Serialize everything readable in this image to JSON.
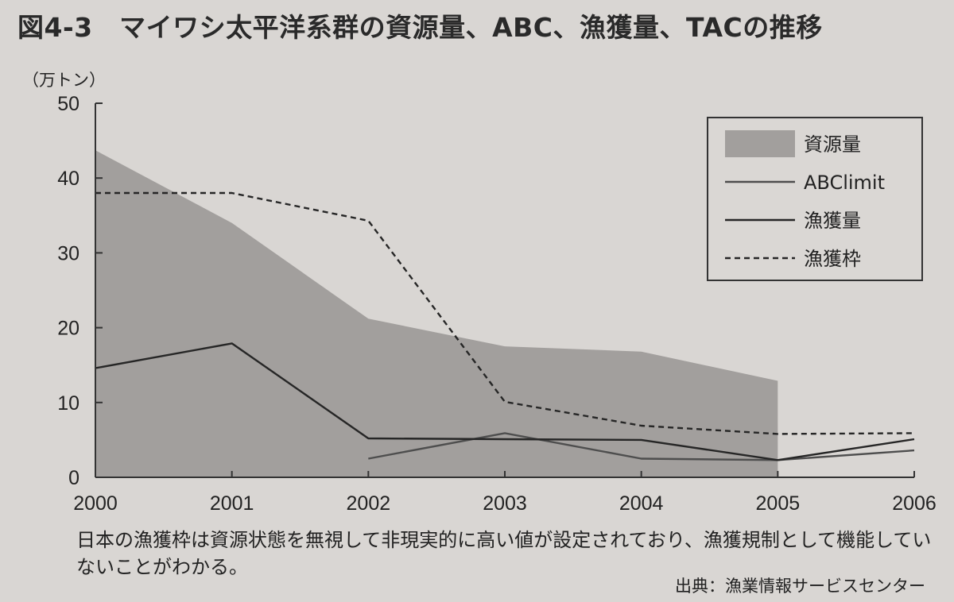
{
  "figure": {
    "title": "図4-3　マイワシ太平洋系群の資源量、ABC、漁獲量、TACの推移",
    "caption": "日本の漁獲枠は資源状態を無視して非現実的に高い値が設定されており、漁獲規制として機能していないことがわかる。",
    "source": "出典：漁業情報サービスセンター"
  },
  "chart_data": {
    "type": "line",
    "title": "図4-3　マイワシ太平洋系群の資源量、ABC、漁獲量、TACの推移",
    "unit_label": "（万トン）",
    "xlabel": "",
    "ylabel": "",
    "x": [
      2000,
      2001,
      2002,
      2003,
      2004,
      2005,
      2006
    ],
    "x_tick_labels": [
      "2000",
      "2001",
      "2002",
      "2003",
      "2004",
      "2005",
      "2006"
    ],
    "ylim": [
      0,
      50
    ],
    "y_ticks": [
      0,
      10,
      20,
      30,
      40,
      50
    ],
    "y_tick_labels": [
      "0",
      "10",
      "20",
      "30",
      "40",
      "50"
    ],
    "grid": false,
    "legend_position": "top-right",
    "series": [
      {
        "name": "資源量",
        "style": "area",
        "color": "#a29f9d",
        "x": [
          2000,
          2001,
          2002,
          2003,
          2004,
          2005
        ],
        "values": [
          43.7,
          34.0,
          21.2,
          17.5,
          16.8,
          12.9
        ]
      },
      {
        "name": "ABClimit",
        "style": "solid",
        "color": "#4e4e4e",
        "x": [
          2002,
          2003,
          2004,
          2005,
          2006
        ],
        "values": [
          2.5,
          5.9,
          2.5,
          2.3,
          3.6
        ]
      },
      {
        "name": "漁獲量",
        "style": "solid",
        "color": "#262626",
        "x": [
          2000,
          2001,
          2002,
          2003,
          2004,
          2005,
          2006
        ],
        "values": [
          14.6,
          17.9,
          5.2,
          5.1,
          5.0,
          2.3,
          5.1
        ]
      },
      {
        "name": "漁獲枠",
        "style": "dashed",
        "color": "#262626",
        "x": [
          2000,
          2001,
          2002,
          2003,
          2004,
          2005,
          2006
        ],
        "values": [
          38.0,
          38.0,
          34.3,
          10.1,
          6.9,
          5.8,
          5.9
        ]
      }
    ]
  }
}
